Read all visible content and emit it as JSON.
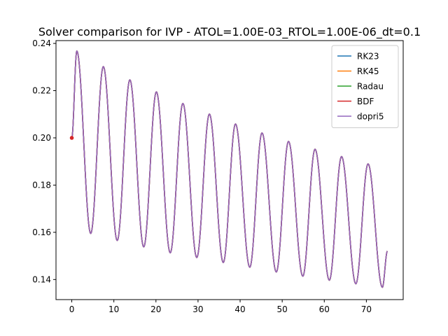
{
  "chart_data": {
    "type": "line",
    "title": "Solver comparison for IVP - ATOL=1.00E-03_RTOL=1.00E-06_dt=0.1",
    "xlabel": "",
    "ylabel": "",
    "xlim": [
      -3.75,
      78.75
    ],
    "ylim": [
      0.1315,
      0.2412
    ],
    "x_ticks": [
      0,
      10,
      20,
      30,
      40,
      50,
      60,
      70
    ],
    "x_tick_labels": [
      "0",
      "10",
      "20",
      "30",
      "40",
      "50",
      "60",
      "70"
    ],
    "y_ticks": [
      0.14,
      0.16,
      0.18,
      0.2,
      0.22,
      0.24
    ],
    "y_tick_labels": [
      "0.14",
      "0.16",
      "0.18",
      "0.20",
      "0.22",
      "0.24"
    ],
    "grid": false,
    "legend_position": "upper right",
    "signal": {
      "x_start": 0,
      "x_end": 75,
      "y_start": 0.2,
      "peaks": [
        [
          1.2,
          0.2368
        ],
        [
          7.5,
          0.2302
        ],
        [
          13.8,
          0.2246
        ],
        [
          20.1,
          0.2195
        ],
        [
          26.4,
          0.2146
        ],
        [
          32.7,
          0.2101
        ],
        [
          38.9,
          0.2059
        ],
        [
          45.2,
          0.2021
        ],
        [
          51.5,
          0.1985
        ],
        [
          57.8,
          0.1952
        ],
        [
          64.1,
          0.1921
        ],
        [
          70.4,
          0.189
        ]
      ],
      "troughs": [
        [
          4.5,
          0.1595
        ],
        [
          10.8,
          0.1565
        ],
        [
          17.1,
          0.1538
        ],
        [
          23.4,
          0.1513
        ],
        [
          29.7,
          0.1493
        ],
        [
          36.0,
          0.1472
        ],
        [
          42.3,
          0.1452
        ],
        [
          48.6,
          0.1432
        ],
        [
          54.9,
          0.1414
        ],
        [
          61.2,
          0.1397
        ],
        [
          67.5,
          0.1382
        ],
        [
          73.8,
          0.1367
        ]
      ],
      "y_end": 0.152
    },
    "series": [
      {
        "name": "RK23",
        "color": "#1f77b4"
      },
      {
        "name": "RK45",
        "color": "#ff7f0e"
      },
      {
        "name": "Radau",
        "color": "#2ca02c"
      },
      {
        "name": "BDF",
        "color": "#d62728",
        "marker_points": [
          [
            0.0,
            0.2
          ]
        ]
      },
      {
        "name": "dopri5",
        "color": "#9467bd"
      }
    ]
  }
}
